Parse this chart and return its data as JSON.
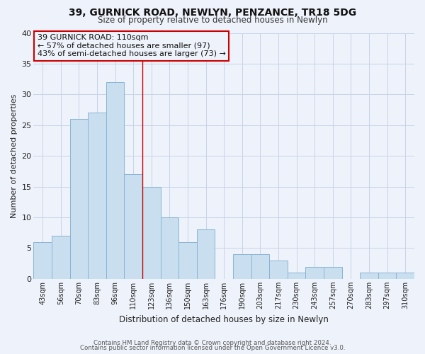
{
  "title": "39, GURNICK ROAD, NEWLYN, PENZANCE, TR18 5DG",
  "subtitle": "Size of property relative to detached houses in Newlyn",
  "xlabel": "Distribution of detached houses by size in Newlyn",
  "ylabel": "Number of detached properties",
  "footnote1": "Contains HM Land Registry data © Crown copyright and database right 2024.",
  "footnote2": "Contains public sector information licensed under the Open Government Licence v3.0.",
  "annotation_line1": "39 GURNICK ROAD: 110sqm",
  "annotation_line2": "← 57% of detached houses are smaller (97)",
  "annotation_line3": "43% of semi-detached houses are larger (73) →",
  "bar_color": "#c9dff0",
  "bar_edgecolor": "#8ab4d4",
  "vline_color": "#cc0000",
  "annotation_box_edgecolor": "#cc0000",
  "grid_color": "#c8d4e8",
  "background_color": "#eef2fa",
  "plot_bg_color": "#eef2fa",
  "categories": [
    "43sqm",
    "56sqm",
    "70sqm",
    "83sqm",
    "96sqm",
    "110sqm",
    "123sqm",
    "136sqm",
    "150sqm",
    "163sqm",
    "176sqm",
    "190sqm",
    "203sqm",
    "217sqm",
    "230sqm",
    "243sqm",
    "257sqm",
    "270sqm",
    "283sqm",
    "297sqm",
    "310sqm"
  ],
  "values": [
    6,
    7,
    26,
    27,
    32,
    17,
    15,
    10,
    6,
    8,
    0,
    4,
    4,
    3,
    1,
    2,
    2,
    0,
    1,
    1,
    1
  ],
  "ylim": [
    0,
    40
  ],
  "yticks": [
    0,
    5,
    10,
    15,
    20,
    25,
    30,
    35,
    40
  ],
  "title_fontsize": 10,
  "subtitle_fontsize": 8.5
}
